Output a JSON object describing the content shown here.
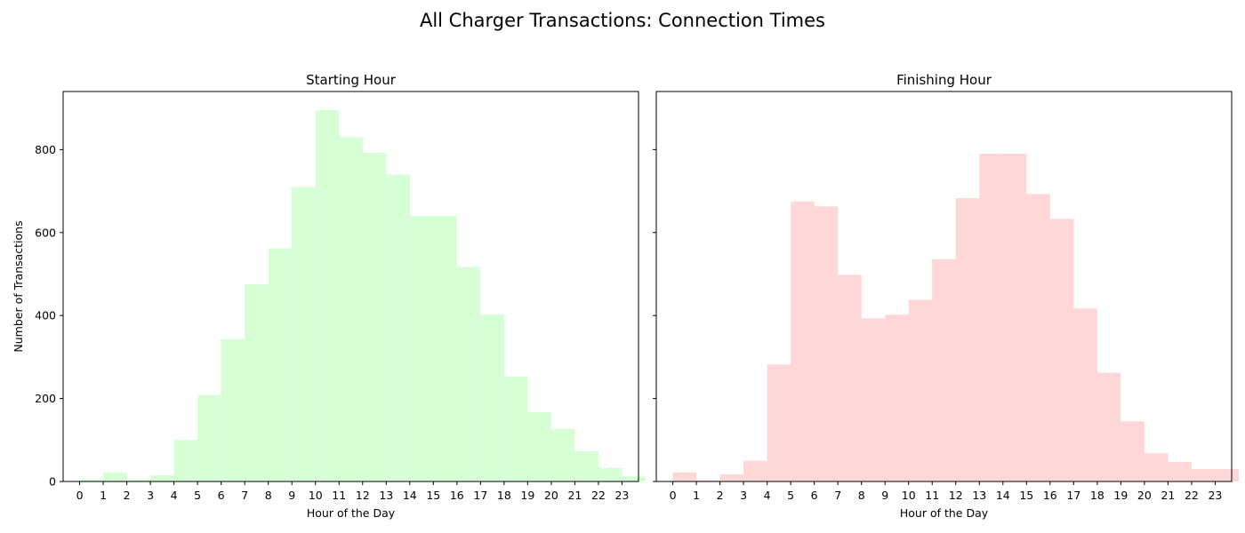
{
  "figure": {
    "title": "All Charger Transactions: Connection Times"
  },
  "chart_data": [
    {
      "type": "bar",
      "title": "Starting Hour",
      "xlabel": "Hour of the Day",
      "ylabel": "Number of Transactions",
      "color": "#d6ffd6",
      "categories": [
        "0",
        "1",
        "2",
        "3",
        "4",
        "5",
        "6",
        "7",
        "8",
        "9",
        "10",
        "11",
        "12",
        "13",
        "14",
        "15",
        "16",
        "17",
        "18",
        "19",
        "20",
        "21",
        "22",
        "23"
      ],
      "values": [
        5,
        22,
        5,
        15,
        100,
        208,
        343,
        475,
        562,
        710,
        895,
        830,
        792,
        740,
        640,
        640,
        517,
        402,
        253,
        167,
        127,
        73,
        33,
        12
      ],
      "ylim": [
        0,
        940
      ],
      "yticks": [
        0,
        200,
        400,
        600,
        800
      ],
      "grid": false
    },
    {
      "type": "bar",
      "title": "Finishing Hour",
      "xlabel": "Hour of the Day",
      "ylabel": "",
      "color": "#ffd7d7",
      "categories": [
        "0",
        "1",
        "2",
        "3",
        "4",
        "5",
        "6",
        "7",
        "8",
        "9",
        "10",
        "11",
        "12",
        "13",
        "14",
        "15",
        "16",
        "17",
        "18",
        "19",
        "20",
        "21",
        "22",
        "23"
      ],
      "values": [
        22,
        3,
        17,
        50,
        282,
        675,
        663,
        498,
        393,
        402,
        438,
        536,
        683,
        790,
        790,
        693,
        633,
        417,
        262,
        145,
        68,
        47,
        30,
        30
      ],
      "ylim": [
        0,
        940
      ],
      "yticks": [
        0,
        200,
        400,
        600,
        800
      ],
      "grid": false,
      "sharey": true
    }
  ]
}
